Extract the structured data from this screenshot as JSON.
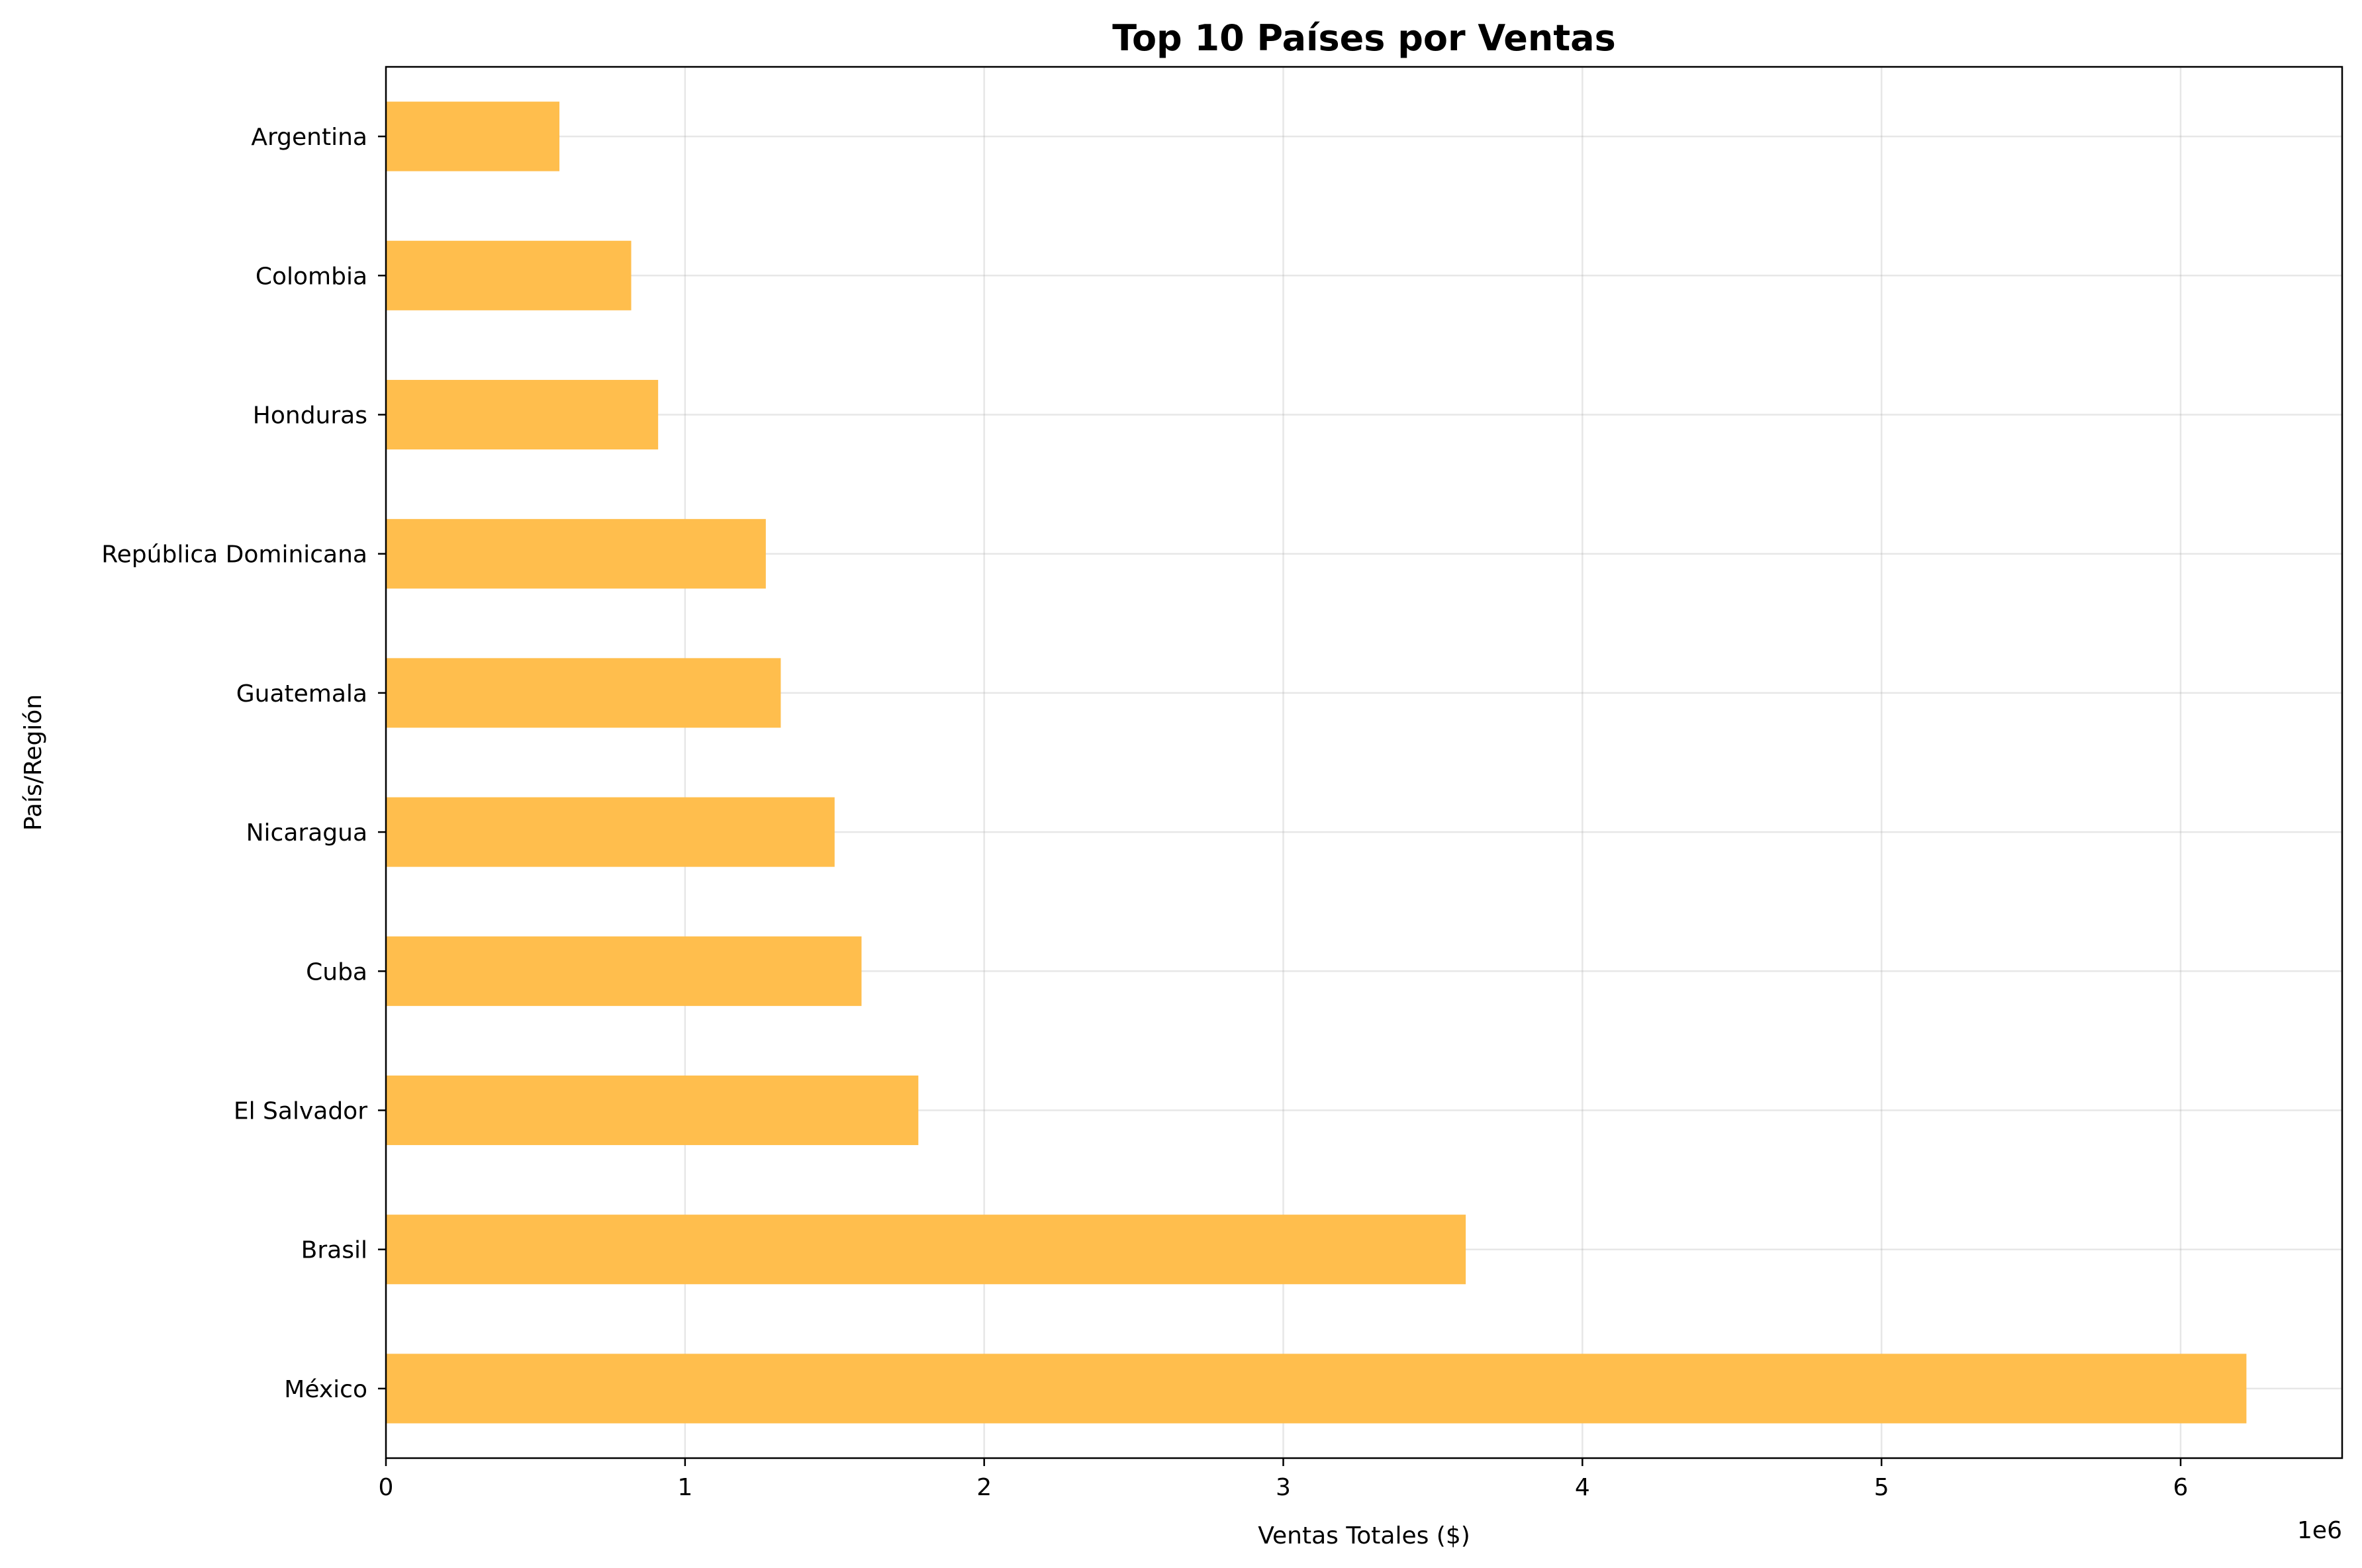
{
  "chart_data": {
    "type": "bar",
    "orientation": "horizontal",
    "title": "Top 10 Países por Ventas",
    "xlabel": "Ventas Totales ($)",
    "ylabel": "País/Región",
    "x_offset_text": "1e6",
    "x_scale_factor": 1000000,
    "xlim": [
      0,
      6540000
    ],
    "x_ticks": [
      0,
      1000000,
      2000000,
      3000000,
      4000000,
      5000000,
      6000000
    ],
    "x_tick_labels": [
      "0",
      "1",
      "2",
      "3",
      "4",
      "5",
      "6"
    ],
    "categories": [
      "México",
      "Brasil",
      "El Salvador",
      "Cuba",
      "Nicaragua",
      "Guatemala",
      "República Dominicana",
      "Honduras",
      "Colombia",
      "Argentina"
    ],
    "values": [
      6220000,
      3610000,
      1780000,
      1590000,
      1500000,
      1320000,
      1270000,
      910000,
      820000,
      580000
    ],
    "bar_color": "#ffbe4d",
    "grid": true
  }
}
